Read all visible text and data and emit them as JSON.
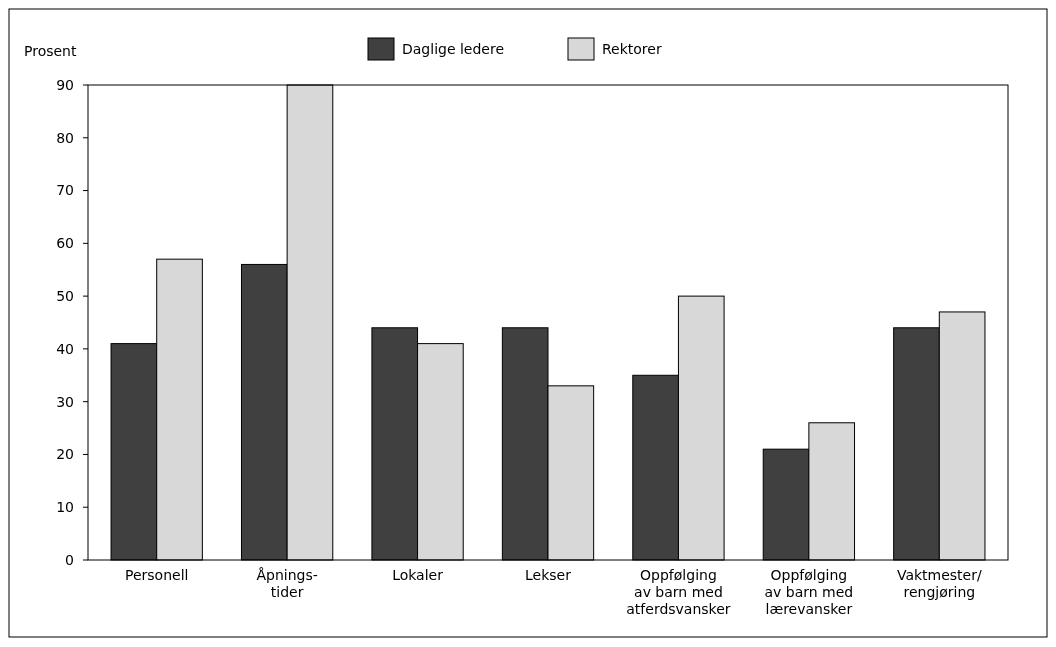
{
  "chart_data": {
    "type": "bar",
    "ylabel": "Prosent",
    "categories": [
      "Personell",
      "Åpnings-\ntider",
      "Lokaler",
      "Lekser",
      "Oppfølging\nav barn med\natferdsvansker",
      "Oppfølging\nav barn med\nlærevansker",
      "Vaktmester/\nrengjøring"
    ],
    "series": [
      {
        "name": "Daglige ledere",
        "color": "#404040",
        "values": [
          41,
          56,
          44,
          44,
          35,
          21,
          44
        ]
      },
      {
        "name": "Rektorer",
        "color": "#d8d8d8",
        "values": [
          57,
          90,
          41,
          33,
          50,
          26,
          47
        ]
      }
    ],
    "ylim": [
      0,
      90
    ],
    "yticks": [
      0,
      10,
      20,
      30,
      40,
      50,
      60,
      70,
      80,
      90
    ],
    "grid": false,
    "legend": "top"
  }
}
